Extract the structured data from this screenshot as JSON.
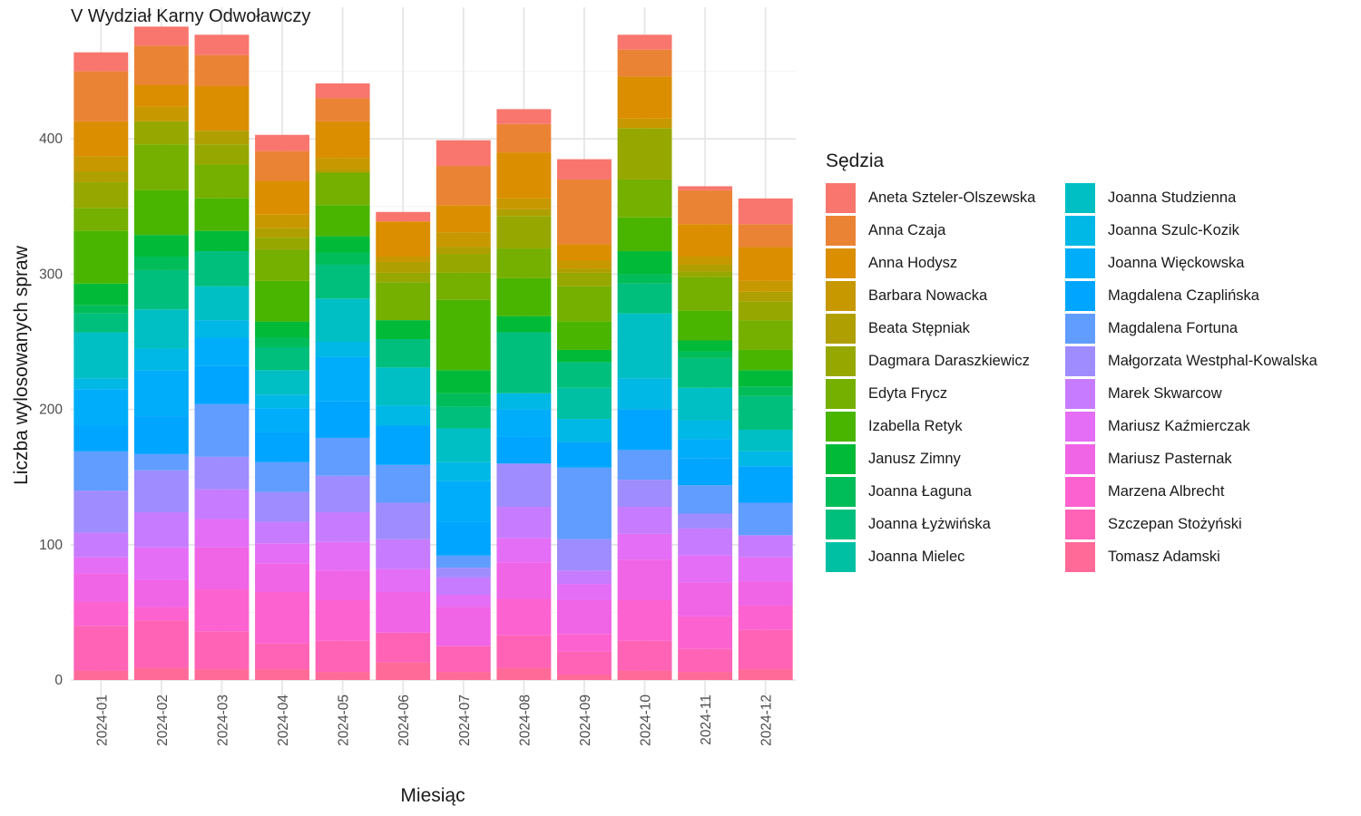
{
  "chart_data": {
    "type": "bar",
    "stacked": true,
    "title": "V Wydział Karny Odwoławczy",
    "xlabel": "Miesiąc",
    "ylabel": "Liczba wylosowanych spraw",
    "legend_title": "Sędzia",
    "legend_position": "right",
    "grid": true,
    "ylim": [
      0,
      490
    ],
    "yticks": [
      0,
      100,
      200,
      300,
      400
    ],
    "categories": [
      "2024-01",
      "2024-02",
      "2024-03",
      "2024-04",
      "2024-05",
      "2024-06",
      "2024-07",
      "2024-08",
      "2024-09",
      "2024-10",
      "2024-11",
      "2024-12"
    ],
    "series": [
      {
        "name": "Aneta Szteler-Olszewska",
        "color": "#F8766D",
        "values": [
          14,
          14,
          15,
          12,
          11,
          7,
          19,
          11,
          15,
          11,
          3,
          19
        ]
      },
      {
        "name": "Anna Czaja",
        "color": "#EB8335",
        "values": [
          37,
          29,
          23,
          22,
          17,
          0,
          29,
          21,
          48,
          20,
          25,
          17
        ]
      },
      {
        "name": "Anna Hodysz",
        "color": "#DB8E00",
        "values": [
          26,
          16,
          33,
          25,
          27,
          26,
          20,
          34,
          12,
          31,
          24,
          25
        ]
      },
      {
        "name": "Barbara Nowacka",
        "color": "#C79800",
        "values": [
          11,
          11,
          0,
          10,
          9,
          4,
          11,
          8,
          6,
          7,
          6,
          8
        ]
      },
      {
        "name": "Beata Stępniak",
        "color": "#B09F00",
        "values": [
          8,
          0,
          10,
          7,
          2,
          8,
          5,
          5,
          3,
          0,
          5,
          7
        ]
      },
      {
        "name": "Dagmara Daraszkiewicz",
        "color": "#96A800",
        "values": [
          19,
          17,
          15,
          9,
          0,
          7,
          14,
          24,
          10,
          38,
          4,
          14
        ]
      },
      {
        "name": "Edyta Frycz",
        "color": "#75AF00",
        "values": [
          17,
          34,
          25,
          23,
          24,
          28,
          20,
          22,
          26,
          28,
          25,
          22
        ]
      },
      {
        "name": "Izabella Retyk",
        "color": "#49B500",
        "values": [
          39,
          33,
          24,
          30,
          23,
          0,
          52,
          28,
          21,
          25,
          22,
          15
        ]
      },
      {
        "name": "Janusz Zimny",
        "color": "#00BA38",
        "values": [
          16,
          16,
          15,
          12,
          12,
          14,
          17,
          12,
          9,
          17,
          8,
          12
        ]
      },
      {
        "name": "Joanna Łaguna",
        "color": "#00BC59",
        "values": [
          6,
          10,
          0,
          7,
          9,
          0,
          10,
          0,
          0,
          7,
          5,
          7
        ]
      },
      {
        "name": "Joanna Łyżwińska",
        "color": "#00BF7D",
        "values": [
          14,
          29,
          26,
          17,
          25,
          21,
          16,
          45,
          19,
          22,
          22,
          25
        ]
      },
      {
        "name": "Joanna Mielec",
        "color": "#00C0A4",
        "values": [
          0,
          0,
          0,
          0,
          0,
          0,
          0,
          0,
          23,
          0,
          0,
          0
        ]
      },
      {
        "name": "Joanna Studzienna",
        "color": "#00BFC4",
        "values": [
          34,
          29,
          25,
          18,
          32,
          28,
          25,
          0,
          0,
          48,
          24,
          16
        ]
      },
      {
        "name": "Joanna Szulc-Kozik",
        "color": "#00B8E5",
        "values": [
          8,
          16,
          13,
          10,
          11,
          15,
          14,
          12,
          17,
          23,
          14,
          11
        ]
      },
      {
        "name": "Joanna Więckowska",
        "color": "#00ADFA",
        "values": [
          27,
          34,
          21,
          18,
          33,
          0,
          30,
          20,
          0,
          0,
          14,
          0
        ]
      },
      {
        "name": "Magdalena Czaplińska",
        "color": "#00A5FF",
        "values": [
          19,
          28,
          28,
          22,
          27,
          29,
          25,
          20,
          19,
          30,
          20,
          27
        ]
      },
      {
        "name": "Magdalena Fortuna",
        "color": "#619CFF",
        "values": [
          29,
          12,
          39,
          22,
          28,
          28,
          9,
          0,
          53,
          22,
          21,
          24
        ]
      },
      {
        "name": "Małgorzata Westphal-Kowalska",
        "color": "#9F8CFF",
        "values": [
          31,
          31,
          24,
          22,
          27,
          27,
          7,
          32,
          23,
          20,
          11,
          0
        ]
      },
      {
        "name": "Marek Skwarcow",
        "color": "#C77CFF",
        "values": [
          18,
          26,
          22,
          16,
          22,
          22,
          13,
          23,
          10,
          20,
          20,
          16
        ]
      },
      {
        "name": "Mariusz Kaźmierczak",
        "color": "#E46EF6",
        "values": [
          12,
          24,
          21,
          15,
          21,
          17,
          9,
          18,
          12,
          19,
          20,
          18
        ]
      },
      {
        "name": "Mariusz Pasternak",
        "color": "#F064E6",
        "values": [
          21,
          20,
          31,
          21,
          22,
          30,
          29,
          27,
          25,
          30,
          25,
          18
        ]
      },
      {
        "name": "Marzena Albrecht",
        "color": "#FD62D1",
        "values": [
          18,
          10,
          31,
          38,
          30,
          0,
          0,
          27,
          13,
          30,
          24,
          18
        ]
      },
      {
        "name": "Szczepan Stożyński",
        "color": "#FF63B6",
        "values": [
          33,
          35,
          28,
          19,
          23,
          22,
          19,
          24,
          17,
          22,
          17,
          29
        ]
      },
      {
        "name": "Tomasz Adamski",
        "color": "#FF6A98",
        "values": [
          7,
          9,
          8,
          8,
          6,
          13,
          6,
          9,
          4,
          7,
          6,
          8
        ]
      }
    ]
  }
}
